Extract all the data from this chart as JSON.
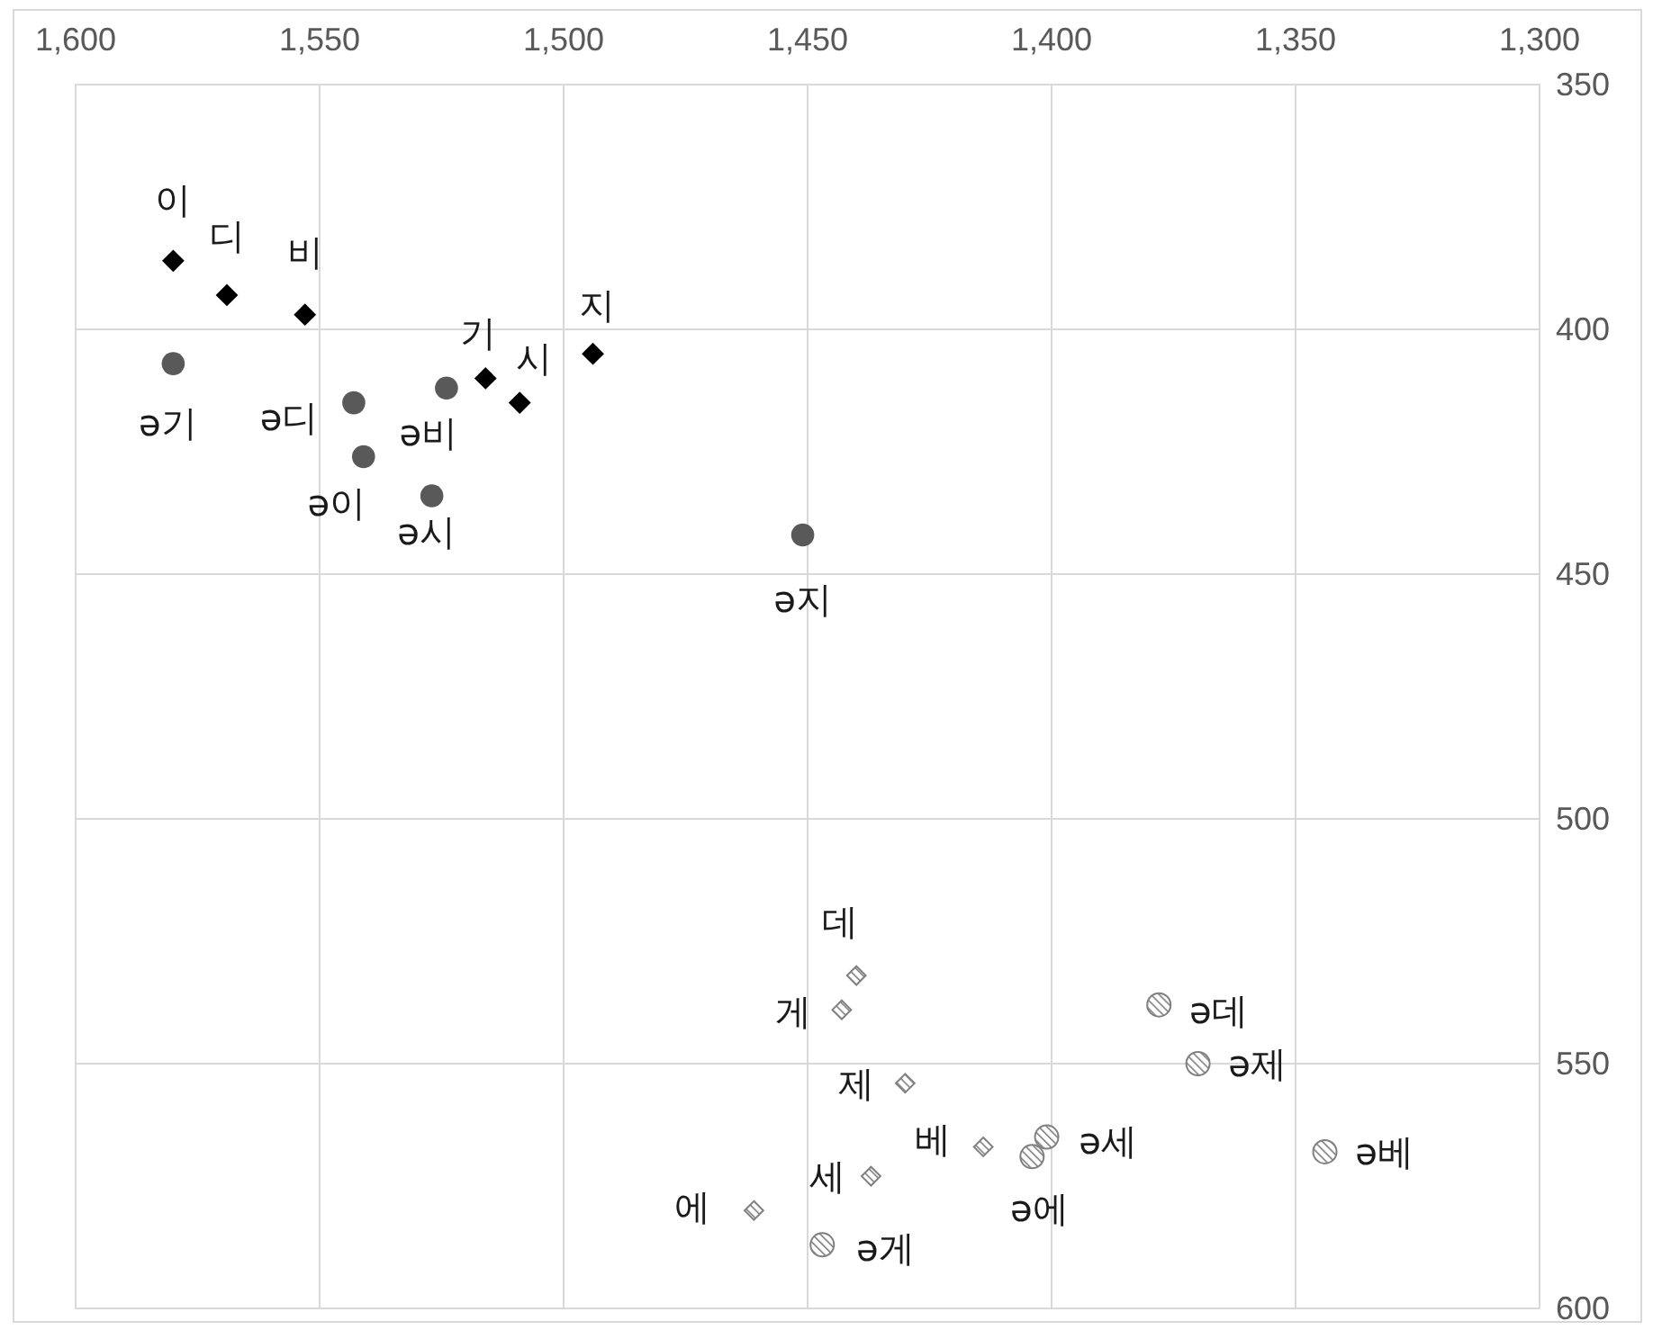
{
  "chart_data": {
    "type": "scatter",
    "xlim": [
      1600,
      1300
    ],
    "ylim": [
      600,
      350
    ],
    "xticks": [
      {
        "value": 1600,
        "label": "1,600"
      },
      {
        "value": 1550,
        "label": "1,550"
      },
      {
        "value": 1500,
        "label": "1,500"
      },
      {
        "value": 1450,
        "label": "1,450"
      },
      {
        "value": 1400,
        "label": "1,400"
      },
      {
        "value": 1350,
        "label": "1,350"
      },
      {
        "value": 1300,
        "label": "1,300"
      }
    ],
    "yticks": [
      350,
      400,
      450,
      500,
      550,
      600
    ],
    "grid": true,
    "series": [
      {
        "color": "#000000",
        "marker": "diamond",
        "x": [
          1580,
          1569,
          1553,
          1516,
          1509,
          1494
        ],
        "values": [
          386,
          393,
          397,
          410,
          415,
          405
        ]
      },
      {
        "color": "#595959",
        "marker": "circle",
        "x": [
          1541,
          1543,
          1524,
          1580,
          1527,
          1451
        ],
        "values": [
          426,
          415,
          412,
          407,
          434,
          442
        ]
      },
      {
        "color": "#808080",
        "marker": "diamond",
        "x": [
          1440,
          1443,
          1430,
          1414,
          1437,
          1461
        ],
        "values": [
          532,
          539,
          554,
          567,
          573,
          580
        ]
      },
      {
        "color": "#808080",
        "marker": "circle",
        "x": [
          1378,
          1447,
          1370,
          1344,
          1401,
          1404
        ],
        "values": [
          538,
          587,
          550,
          568,
          565,
          569
        ]
      }
    ],
    "annotations": [
      {
        "text": "이",
        "x": 1580,
        "y": 386
      },
      {
        "text": "디",
        "x": 1569,
        "y": 393
      },
      {
        "text": "비",
        "x": 1553,
        "y": 397
      },
      {
        "text": "기",
        "x": 1516,
        "y": 410
      },
      {
        "text": "시",
        "x": 1509,
        "y": 415
      },
      {
        "text": "지",
        "x": 1494,
        "y": 405
      },
      {
        "text": "ə이",
        "x": 1541,
        "y": 426
      },
      {
        "text": "ə디",
        "x": 1543,
        "y": 415
      },
      {
        "text": "ə비",
        "x": 1524,
        "y": 412
      },
      {
        "text": "ə기",
        "x": 1580,
        "y": 407
      },
      {
        "text": "ə시",
        "x": 1527,
        "y": 434
      },
      {
        "text": "ə지",
        "x": 1451,
        "y": 442
      },
      {
        "text": "데",
        "x": 1440,
        "y": 532
      },
      {
        "text": "게",
        "x": 1443,
        "y": 539
      },
      {
        "text": "제",
        "x": 1430,
        "y": 554
      },
      {
        "text": "베",
        "x": 1414,
        "y": 567
      },
      {
        "text": "세",
        "x": 1437,
        "y": 573
      },
      {
        "text": "에",
        "x": 1461,
        "y": 580
      },
      {
        "text": "ə데",
        "x": 1378,
        "y": 538
      },
      {
        "text": "ə게",
        "x": 1447,
        "y": 587
      },
      {
        "text": "ə제",
        "x": 1370,
        "y": 550
      },
      {
        "text": "ə베",
        "x": 1344,
        "y": 568
      },
      {
        "text": "ə세",
        "x": 1401,
        "y": 565
      },
      {
        "text": "ə에",
        "x": 1404,
        "y": 569
      }
    ]
  }
}
